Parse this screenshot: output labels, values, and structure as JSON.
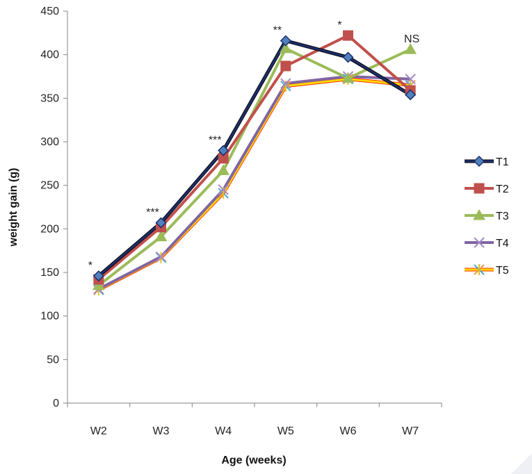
{
  "chart_data": {
    "type": "line",
    "title": "",
    "xlabel": "Age (weeks)",
    "ylabel": "weight gain (g)",
    "categories": [
      "W2",
      "W3",
      "W4",
      "W5",
      "W6",
      "W7"
    ],
    "ylim": [
      0,
      450
    ],
    "yticks": [
      0,
      50,
      100,
      150,
      200,
      250,
      300,
      350,
      400,
      450
    ],
    "grid": false,
    "legend_position": "right",
    "series": [
      {
        "name": "T1",
        "values": [
          146,
          207,
          290,
          416,
          397,
          354
        ],
        "color": "#1f2f6b",
        "marker": "diamond"
      },
      {
        "name": "T2",
        "values": [
          142,
          202,
          281,
          387,
          422,
          359
        ],
        "color": "#c0504d",
        "marker": "square"
      },
      {
        "name": "T3",
        "values": [
          135,
          191,
          267,
          407,
          373,
          406
        ],
        "color": "#9bbb59",
        "marker": "triangle"
      },
      {
        "name": "T4",
        "values": [
          131,
          168,
          245,
          367,
          375,
          372
        ],
        "color": "#8064a2",
        "marker": "x"
      },
      {
        "name": "T5",
        "values": [
          130,
          167,
          241,
          364,
          372,
          365
        ],
        "color": "#ffd700",
        "marker": "star"
      }
    ],
    "annotations": [
      {
        "category": "W2",
        "y": 146,
        "text": "*"
      },
      {
        "category": "W3",
        "y": 207,
        "text": "***"
      },
      {
        "category": "W4",
        "y": 290,
        "text": "***"
      },
      {
        "category": "W5",
        "y": 416,
        "text": "**"
      },
      {
        "category": "W6",
        "y": 422,
        "text": "*"
      },
      {
        "category": "W7",
        "y": 406,
        "text": "NS"
      }
    ]
  }
}
